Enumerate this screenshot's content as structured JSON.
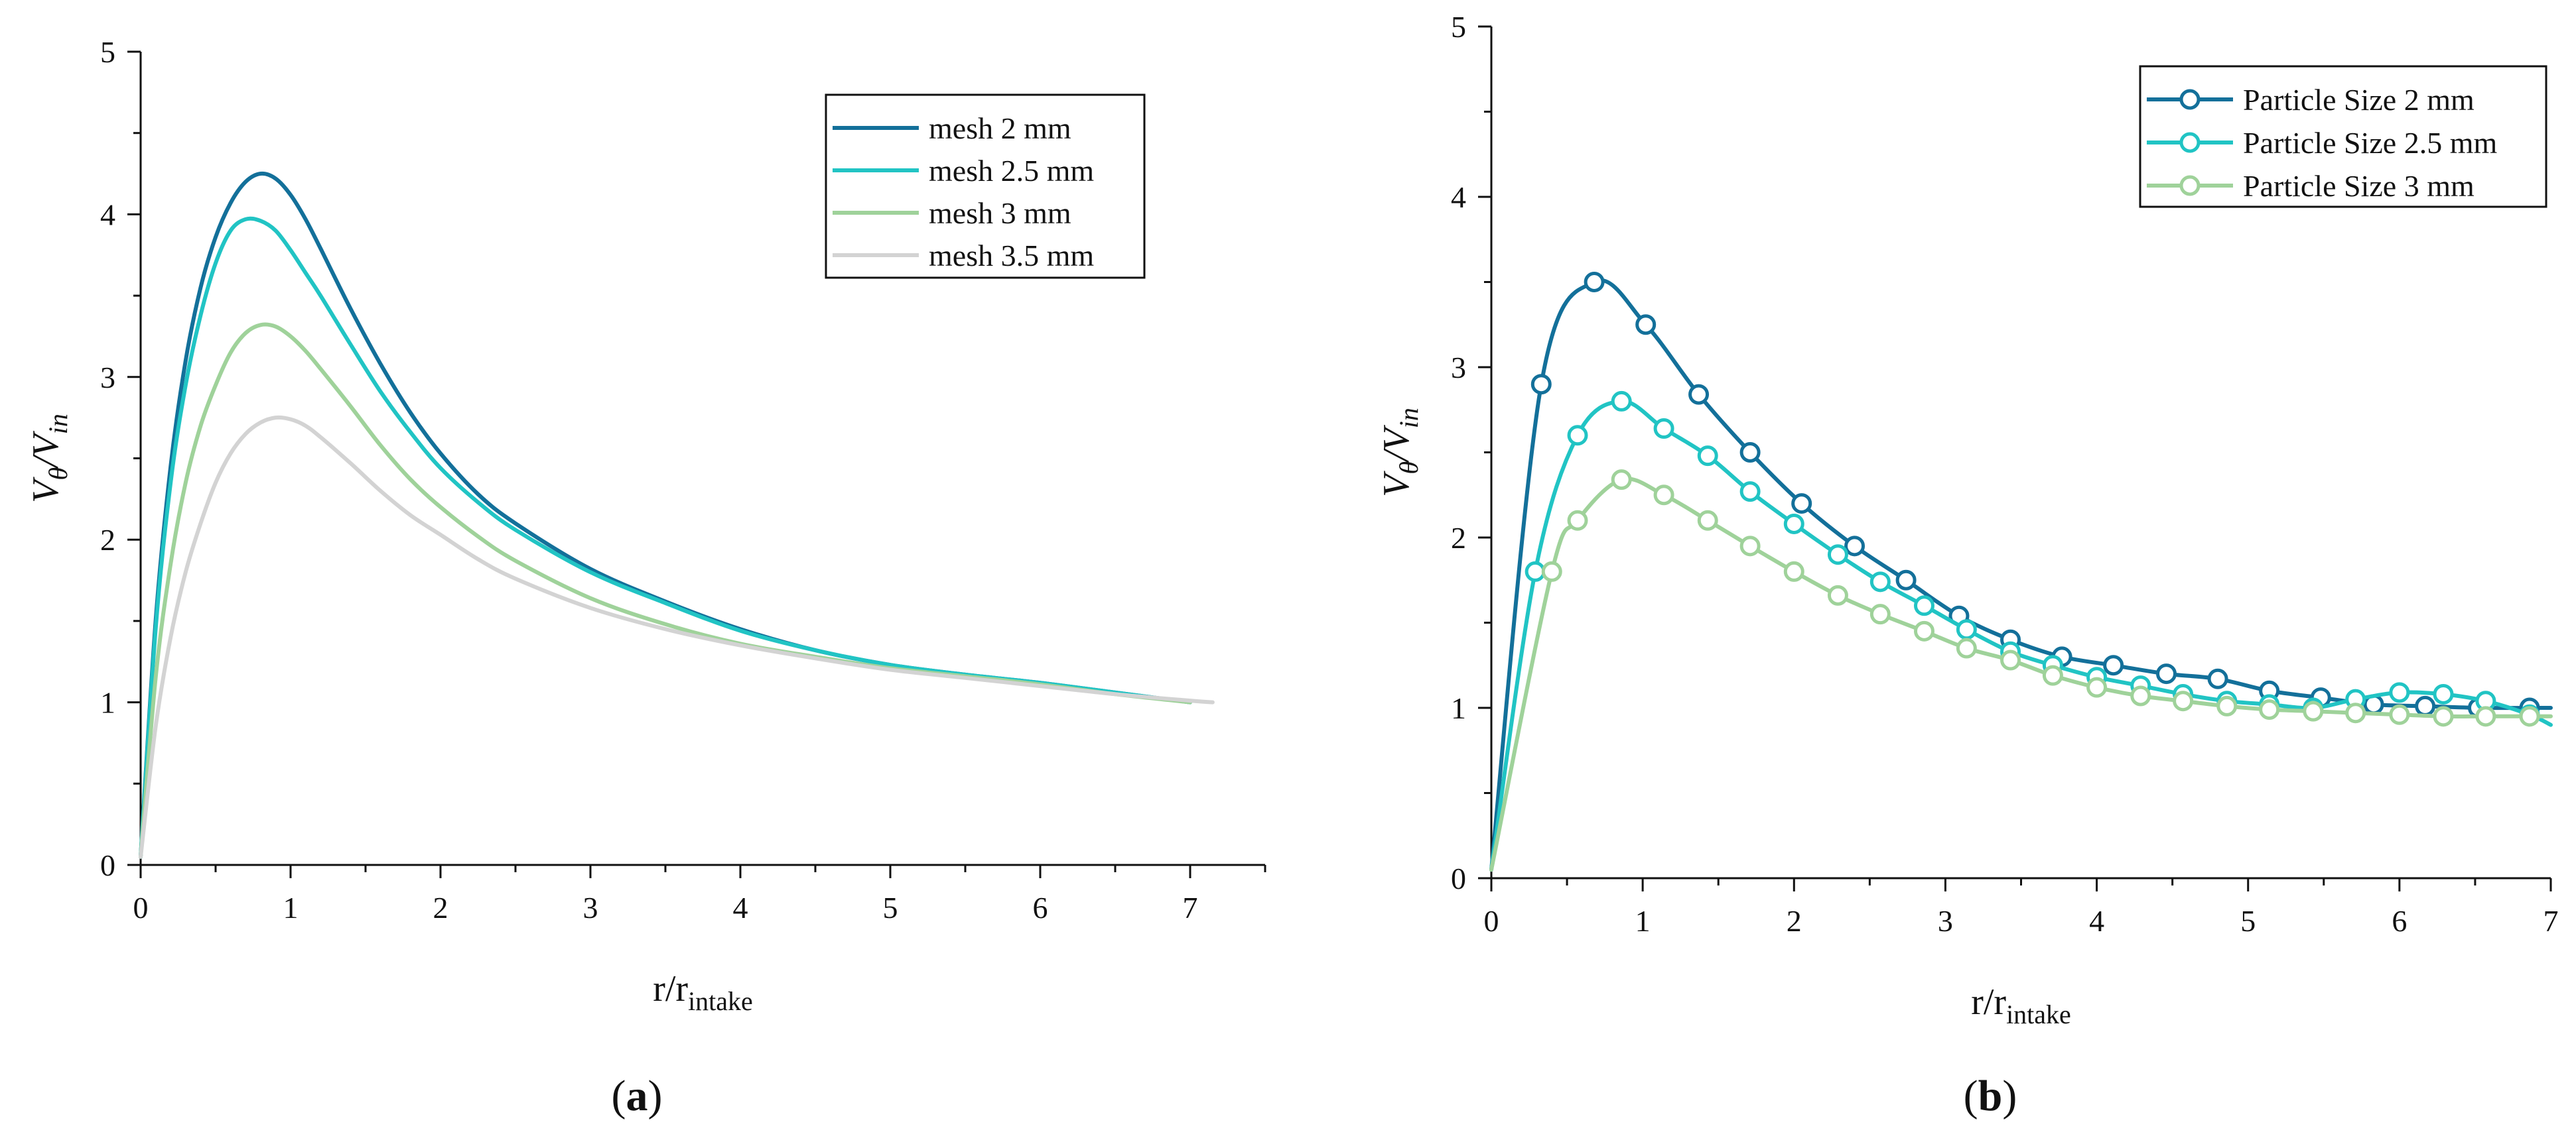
{
  "panel_labels": [
    "a",
    "b"
  ],
  "chart_data": [
    {
      "type": "line",
      "title": "",
      "panel_label": "a",
      "xlabel": "r/r",
      "xlabel_sub": "intake",
      "ylabel": "V",
      "ylabel_sub1": "θ",
      "ylabel_sep": "/V",
      "ylabel_sub2": "in",
      "xlim": [
        0,
        7.5
      ],
      "ylim": [
        0,
        5
      ],
      "xticks": [
        0,
        1,
        2,
        3,
        4,
        5,
        6,
        7
      ],
      "yticks": [
        0,
        1,
        2,
        3,
        4,
        5
      ],
      "grid": false,
      "legend_position": "top-right",
      "series": [
        {
          "name": "mesh 2 mm",
          "color": "#13709a",
          "markers": false,
          "x": [
            0,
            0.1,
            0.2,
            0.3,
            0.4,
            0.5,
            0.6,
            0.7,
            0.8,
            0.9,
            1.0,
            1.1,
            1.2,
            1.4,
            1.6,
            1.8,
            2.0,
            2.25,
            2.5,
            3.0,
            3.5,
            4.0,
            4.5,
            5.0,
            5.5,
            6.0,
            6.5,
            7.0
          ],
          "y": [
            0.05,
            1.5,
            2.45,
            3.1,
            3.55,
            3.86,
            4.07,
            4.2,
            4.25,
            4.22,
            4.12,
            3.97,
            3.79,
            3.42,
            3.08,
            2.78,
            2.53,
            2.28,
            2.1,
            1.82,
            1.62,
            1.45,
            1.32,
            1.23,
            1.17,
            1.12,
            1.06,
            1.0
          ]
        },
        {
          "name": "mesh 2.5 mm",
          "color": "#21c4c4",
          "markers": false,
          "x": [
            0,
            0.1,
            0.2,
            0.3,
            0.4,
            0.5,
            0.6,
            0.7,
            0.8,
            0.9,
            1.0,
            1.1,
            1.2,
            1.4,
            1.6,
            1.8,
            2.0,
            2.25,
            2.5,
            3.0,
            3.5,
            4.0,
            4.5,
            5.0,
            5.5,
            6.0,
            6.5,
            7.0
          ],
          "y": [
            0.05,
            1.45,
            2.35,
            2.95,
            3.38,
            3.7,
            3.9,
            3.97,
            3.96,
            3.9,
            3.78,
            3.64,
            3.5,
            3.2,
            2.91,
            2.66,
            2.44,
            2.23,
            2.06,
            1.8,
            1.61,
            1.44,
            1.32,
            1.23,
            1.17,
            1.12,
            1.06,
            1.0
          ]
        },
        {
          "name": "mesh 3 mm",
          "color": "#9fd29a",
          "markers": false,
          "x": [
            0,
            0.1,
            0.2,
            0.3,
            0.4,
            0.5,
            0.6,
            0.7,
            0.8,
            0.9,
            1.0,
            1.1,
            1.2,
            1.4,
            1.6,
            1.8,
            2.0,
            2.25,
            2.5,
            3.0,
            3.5,
            4.0,
            4.5,
            5.0,
            5.5,
            6.0,
            6.5,
            7.0
          ],
          "y": [
            0.05,
            1.15,
            1.85,
            2.35,
            2.7,
            2.95,
            3.15,
            3.27,
            3.32,
            3.31,
            3.25,
            3.16,
            3.05,
            2.82,
            2.58,
            2.37,
            2.2,
            2.02,
            1.87,
            1.64,
            1.48,
            1.36,
            1.28,
            1.21,
            1.16,
            1.11,
            1.05,
            1.0
          ]
        },
        {
          "name": "mesh 3.5 mm",
          "color": "#d3d3d3",
          "markers": false,
          "x": [
            0,
            0.1,
            0.2,
            0.3,
            0.4,
            0.5,
            0.6,
            0.7,
            0.8,
            0.9,
            1.0,
            1.1,
            1.2,
            1.4,
            1.6,
            1.8,
            2.0,
            2.25,
            2.5,
            3.0,
            3.5,
            4.0,
            4.5,
            5.0,
            5.5,
            6.0,
            6.5,
            7.0,
            7.15
          ],
          "y": [
            0.05,
            0.85,
            1.4,
            1.8,
            2.1,
            2.35,
            2.53,
            2.65,
            2.72,
            2.75,
            2.74,
            2.7,
            2.63,
            2.47,
            2.3,
            2.15,
            2.03,
            1.88,
            1.76,
            1.58,
            1.45,
            1.35,
            1.27,
            1.2,
            1.15,
            1.1,
            1.05,
            1.01,
            1.0
          ]
        }
      ]
    },
    {
      "type": "line",
      "title": "",
      "panel_label": "b",
      "xlabel": "r/r",
      "xlabel_sub": "intake",
      "ylabel": "V",
      "ylabel_sub1": "θ",
      "ylabel_sep": "/V",
      "ylabel_sub2": "in",
      "xlim": [
        0,
        7
      ],
      "ylim": [
        0,
        5
      ],
      "xticks": [
        0,
        1,
        2,
        3,
        4,
        5,
        6,
        7
      ],
      "yticks": [
        0,
        1,
        2,
        3,
        4,
        5
      ],
      "grid": false,
      "legend_position": "top-right",
      "series": [
        {
          "name": "Particle Size 2 mm",
          "color": "#13709a",
          "markers": true,
          "x": [
            0.0,
            0.33,
            0.68,
            1.02,
            1.37,
            1.71,
            2.05,
            2.4,
            2.74,
            3.09,
            3.43,
            3.77,
            4.11,
            4.46,
            4.8,
            5.14,
            5.48,
            5.83,
            6.17,
            6.52,
            6.86,
            7.0
          ],
          "y": [
            0.05,
            2.9,
            3.5,
            3.25,
            2.84,
            2.5,
            2.2,
            1.95,
            1.75,
            1.54,
            1.4,
            1.3,
            1.25,
            1.2,
            1.17,
            1.1,
            1.06,
            1.02,
            1.01,
            1.0,
            1.0,
            1.0
          ]
        },
        {
          "name": "Particle Size 2.5 mm",
          "color": "#21c4c4",
          "markers": true,
          "x": [
            0.0,
            0.29,
            0.57,
            0.86,
            1.14,
            1.43,
            1.71,
            2.0,
            2.29,
            2.57,
            2.86,
            3.14,
            3.43,
            3.71,
            4.0,
            4.29,
            4.57,
            4.86,
            5.14,
            5.43,
            5.71,
            6.0,
            6.29,
            6.57,
            6.86,
            7.0
          ],
          "y": [
            0.05,
            1.8,
            2.6,
            2.8,
            2.64,
            2.48,
            2.27,
            2.08,
            1.9,
            1.74,
            1.6,
            1.46,
            1.33,
            1.25,
            1.18,
            1.13,
            1.08,
            1.04,
            1.02,
            1.0,
            1.05,
            1.09,
            1.08,
            1.04,
            0.96,
            0.9
          ]
        },
        {
          "name": "Particle Size 3 mm",
          "color": "#9fd29a",
          "markers": true,
          "x": [
            0.0,
            0.4,
            0.57,
            0.86,
            1.14,
            1.43,
            1.71,
            2.0,
            2.29,
            2.57,
            2.86,
            3.14,
            3.43,
            3.71,
            4.0,
            4.29,
            4.57,
            4.86,
            5.14,
            5.43,
            5.71,
            6.0,
            6.29,
            6.57,
            6.86,
            7.0
          ],
          "y": [
            0.05,
            1.8,
            2.1,
            2.34,
            2.25,
            2.1,
            1.95,
            1.8,
            1.66,
            1.55,
            1.45,
            1.35,
            1.28,
            1.19,
            1.12,
            1.07,
            1.04,
            1.01,
            0.99,
            0.98,
            0.97,
            0.96,
            0.95,
            0.95,
            0.95,
            0.95
          ]
        }
      ]
    }
  ]
}
